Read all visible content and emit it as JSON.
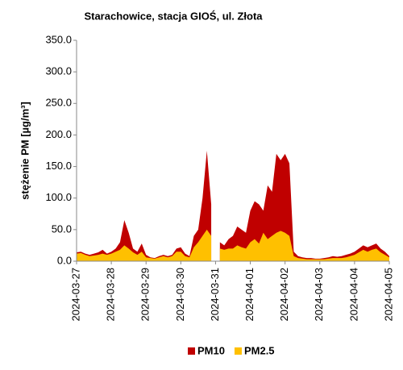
{
  "chart_data": {
    "type": "area",
    "title": "Starachowice, stacja GIOŚ, ul. Złota",
    "y_label": "stężenie PM [µg/m³]",
    "categories": [
      "2024-03-27",
      null,
      null,
      null,
      null,
      null,
      null,
      null,
      "2024-03-28",
      null,
      null,
      null,
      null,
      null,
      null,
      null,
      "2024-03-29",
      null,
      null,
      null,
      null,
      null,
      null,
      null,
      "2024-03-30",
      null,
      null,
      null,
      null,
      null,
      null,
      null,
      "2024-03-31",
      null,
      null,
      null,
      null,
      null,
      null,
      null,
      "2024-04-01",
      null,
      null,
      null,
      null,
      null,
      null,
      null,
      "2024-04-02",
      null,
      null,
      null,
      null,
      null,
      null,
      null,
      "2024-04-03",
      null,
      null,
      null,
      null,
      null,
      null,
      null,
      "2024-04-04",
      null,
      null,
      null,
      null,
      null,
      null,
      null,
      "2024-04-05"
    ],
    "series": [
      {
        "name": "PM10",
        "color": "#c00000",
        "values": [
          14,
          15,
          12,
          10,
          12,
          14,
          18,
          12,
          15,
          20,
          30,
          65,
          45,
          20,
          15,
          28,
          10,
          6,
          5,
          8,
          10,
          8,
          10,
          20,
          22,
          12,
          8,
          40,
          50,
          100,
          175,
          90,
          null,
          30,
          25,
          35,
          40,
          55,
          50,
          45,
          80,
          95,
          90,
          80,
          120,
          110,
          170,
          160,
          170,
          155,
          15,
          8,
          6,
          5,
          5,
          4,
          4,
          5,
          6,
          8,
          7,
          8,
          10,
          12,
          15,
          20,
          25,
          22,
          25,
          28,
          20,
          15,
          8
        ]
      },
      {
        "name": "PM2.5",
        "color": "#ffc000",
        "values": [
          12,
          13,
          10,
          8,
          9,
          10,
          12,
          10,
          12,
          15,
          18,
          25,
          20,
          14,
          10,
          15,
          6,
          5,
          4,
          6,
          8,
          6,
          8,
          15,
          15,
          8,
          6,
          22,
          30,
          40,
          50,
          40,
          null,
          20,
          18,
          20,
          20,
          25,
          22,
          20,
          30,
          35,
          28,
          45,
          35,
          40,
          45,
          48,
          45,
          40,
          8,
          5,
          4,
          3,
          3,
          3,
          3,
          3,
          4,
          5,
          5,
          5,
          6,
          8,
          10,
          14,
          18,
          15,
          18,
          20,
          14,
          10,
          6
        ]
      }
    ],
    "ylim": [
      0,
      350
    ],
    "yticks": [
      {
        "value": 0,
        "label": "0.0"
      },
      {
        "value": 50,
        "label": "50.0"
      },
      {
        "value": 100,
        "label": "100.0"
      },
      {
        "value": 150,
        "label": "150.0"
      },
      {
        "value": 200,
        "label": "200.0"
      },
      {
        "value": 250,
        "label": "250.0"
      },
      {
        "value": 300,
        "label": "300.0"
      },
      {
        "value": 350,
        "label": "350.0"
      }
    ],
    "legend": "bottom"
  }
}
